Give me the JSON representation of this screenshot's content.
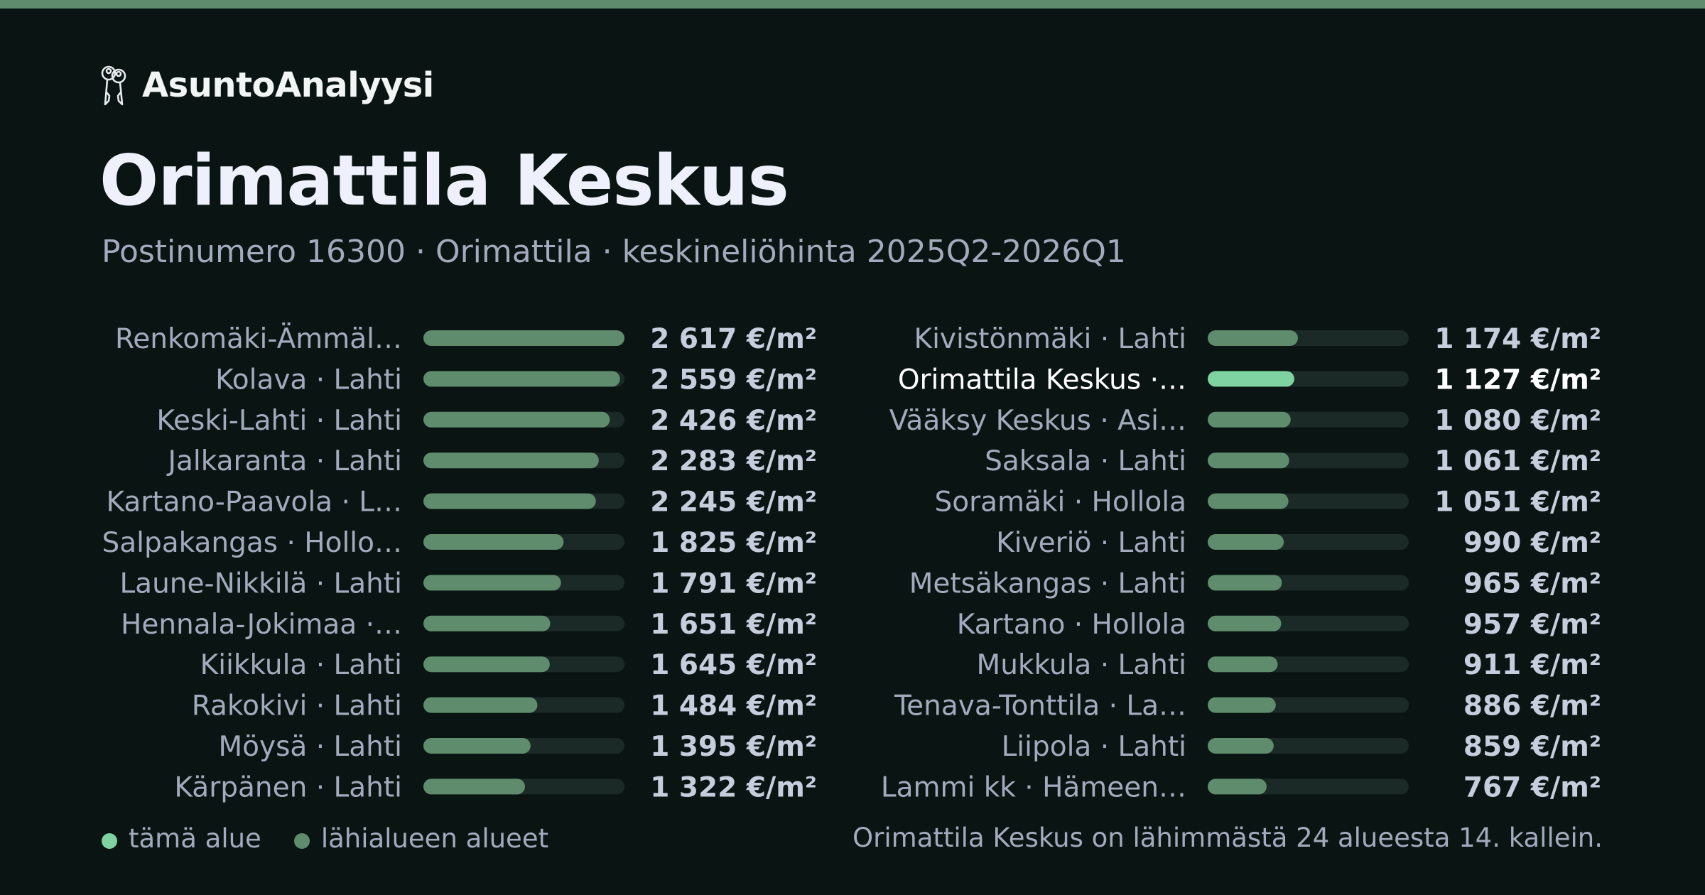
{
  "brand": {
    "name": "AsuntoAnalyysi",
    "icon": "keys-icon"
  },
  "header": {
    "title": "Orimattila Keskus",
    "subtitle": "Postinumero 16300 · Orimattila · keskineliöhinta 2025Q2-2026Q1"
  },
  "legend": {
    "current_label": "tämä alue",
    "others_label": "lähialueen alueet"
  },
  "footnote": "Orimattila Keskus on lähimmästä 24 alueesta 14. kallein.",
  "colors": {
    "background": "#0a1513",
    "bar": "#5e8c6c",
    "bar_highlight": "#7fd3a0",
    "track": "#1b2a27",
    "label": "#a1abbd",
    "value": "#c6cddc",
    "highlight_text": "#ffffff",
    "accent_top": "#5e8c6c"
  },
  "chart_data": {
    "type": "bar",
    "orientation": "horizontal",
    "unit": "€/m²",
    "xlim": [
      0,
      2617
    ],
    "highlight": "Orimattila Keskus ·…",
    "columns": [
      {
        "categories": [
          "Renkomäki-Ämmäl…",
          "Kolava · Lahti",
          "Keski-Lahti · Lahti",
          "Jalkaranta · Lahti",
          "Kartano-Paavola · L…",
          "Salpakangas · Hollo…",
          "Laune-Nikkilä · Lahti",
          "Hennala-Jokimaa ·…",
          "Kiikkula · Lahti",
          "Rakokivi · Lahti",
          "Möysä · Lahti",
          "Kärpänen · Lahti"
        ],
        "values": [
          2617,
          2559,
          2426,
          2283,
          2245,
          1825,
          1791,
          1651,
          1645,
          1484,
          1395,
          1322
        ],
        "value_labels": [
          "2 617 €/m²",
          "2 559 €/m²",
          "2 426 €/m²",
          "2 283 €/m²",
          "2 245 €/m²",
          "1 825 €/m²",
          "1 791 €/m²",
          "1 651 €/m²",
          "1 645 €/m²",
          "1 484 €/m²",
          "1 395 €/m²",
          "1 322 €/m²"
        ]
      },
      {
        "categories": [
          "Kivistönmäki · Lahti",
          "Orimattila Keskus ·…",
          "Vääksy Keskus · Asi…",
          "Saksala · Lahti",
          "Soramäki · Hollola",
          "Kiveriö · Lahti",
          "Metsäkangas · Lahti",
          "Kartano · Hollola",
          "Mukkula · Lahti",
          "Tenava-Tonttila · La…",
          "Liipola · Lahti",
          "Lammi kk · Hämeen…"
        ],
        "values": [
          1174,
          1127,
          1080,
          1061,
          1051,
          990,
          965,
          957,
          911,
          886,
          859,
          767
        ],
        "value_labels": [
          "1 174 €/m²",
          "1 127 €/m²",
          "1 080 €/m²",
          "1 061 €/m²",
          "1 051 €/m²",
          "990 €/m²",
          "965 €/m²",
          "957 €/m²",
          "911 €/m²",
          "886 €/m²",
          "859 €/m²",
          "767 €/m²"
        ]
      }
    ]
  }
}
